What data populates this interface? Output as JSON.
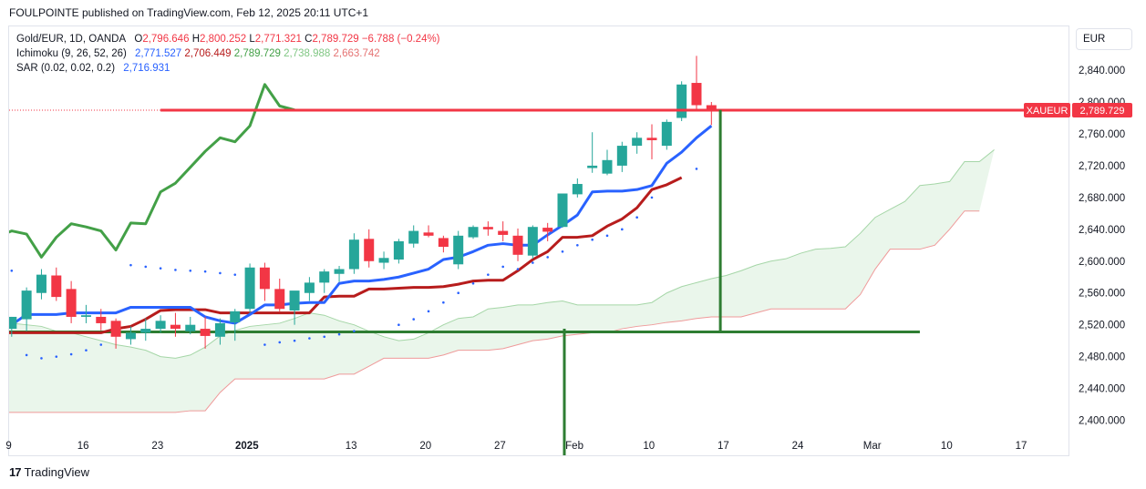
{
  "header": {
    "publisher_line": "FOULPOINTE published on TradingView.com, Feb 12, 2025 20:11 UTC+1"
  },
  "legend": {
    "symbol": "Gold/EUR, 1D, OANDA",
    "ohlc": {
      "o_label": "O",
      "o": "2,796.646",
      "h_label": "H",
      "h": "2,800.252",
      "l_label": "L",
      "l": "2,771.321",
      "c_label": "C",
      "c": "2,789.729",
      "change": "−6.788 (−0.24%)"
    },
    "ichimoku": {
      "label": "Ichimoku (9, 26, 52, 26)",
      "conversion": "2,771.527",
      "base": "2,706.449",
      "lagging": "2,789.729",
      "span_a": "2,738.988",
      "span_b": "2,663.742"
    },
    "sar": {
      "label": "SAR (0.02, 0.02, 0.2)",
      "value": "2,716.931"
    }
  },
  "currency_button": "EUR",
  "price_tag": {
    "symbol": "XAUEUR",
    "price": "2,789.729"
  },
  "footer": {
    "brand": "TradingView"
  },
  "colors": {
    "up": "#26a69a",
    "down": "#f23645",
    "conversion": "#2962ff",
    "base": "#b71c1c",
    "lagging": "#43a047",
    "span_a": "#a5d6a7",
    "span_b": "#ef9a9a",
    "cloud": "#e8f5e9",
    "sar": "#2962ff",
    "drawing": "#2e7d32",
    "price_line": "#f23645"
  },
  "chart_data": {
    "type": "candlestick",
    "title": "Gold/EUR, 1D, OANDA",
    "y_axis": {
      "ticks": [
        2840,
        2800,
        2760,
        2720,
        2680,
        2640,
        2600,
        2560,
        2520,
        2480,
        2440,
        2400
      ],
      "tick_labels": [
        "2,840.000",
        "2,800.000",
        "2,760.000",
        "2,720.000",
        "2,680.000",
        "2,640.000",
        "2,600.000",
        "2,560.000",
        "2,520.000",
        "2,480.000",
        "2,440.000",
        "2,400.000"
      ],
      "ylim": [
        2356,
        2895
      ]
    },
    "x_axis": {
      "ticks": [
        {
          "label": "9",
          "i": -0.2,
          "bold": false
        },
        {
          "label": "16",
          "i": 4.8,
          "bold": false
        },
        {
          "label": "23",
          "i": 9.8,
          "bold": false
        },
        {
          "label": "2025",
          "i": 15.8,
          "bold": true
        },
        {
          "label": "13",
          "i": 22.8,
          "bold": false
        },
        {
          "label": "20",
          "i": 27.8,
          "bold": false
        },
        {
          "label": "27",
          "i": 32.8,
          "bold": false
        },
        {
          "label": "Feb",
          "i": 37.8,
          "bold": false
        },
        {
          "label": "10",
          "i": 42.8,
          "bold": false
        },
        {
          "label": "17",
          "i": 47.8,
          "bold": false
        },
        {
          "label": "24",
          "i": 52.8,
          "bold": false
        },
        {
          "label": "Mar",
          "i": 57.8,
          "bold": false
        },
        {
          "label": "10",
          "i": 62.8,
          "bold": false
        },
        {
          "label": "17",
          "i": 67.8,
          "bold": false
        }
      ]
    },
    "candles": [
      {
        "o": 2515,
        "h": 2530,
        "l": 2505,
        "c": 2530
      },
      {
        "o": 2527,
        "h": 2567,
        "l": 2512,
        "c": 2563
      },
      {
        "o": 2560,
        "h": 2590,
        "l": 2552,
        "c": 2583
      },
      {
        "o": 2582,
        "h": 2592,
        "l": 2550,
        "c": 2555
      },
      {
        "o": 2565,
        "h": 2575,
        "l": 2522,
        "c": 2530
      },
      {
        "o": 2530,
        "h": 2545,
        "l": 2522,
        "c": 2532
      },
      {
        "o": 2530,
        "h": 2540,
        "l": 2513,
        "c": 2522
      },
      {
        "o": 2525,
        "h": 2528,
        "l": 2490,
        "c": 2505
      },
      {
        "o": 2502,
        "h": 2518,
        "l": 2495,
        "c": 2510
      },
      {
        "o": 2510,
        "h": 2528,
        "l": 2500,
        "c": 2515
      },
      {
        "o": 2515,
        "h": 2532,
        "l": 2510,
        "c": 2525
      },
      {
        "o": 2520,
        "h": 2535,
        "l": 2505,
        "c": 2515
      },
      {
        "o": 2512,
        "h": 2530,
        "l": 2508,
        "c": 2520
      },
      {
        "o": 2515,
        "h": 2530,
        "l": 2490,
        "c": 2506
      },
      {
        "o": 2505,
        "h": 2528,
        "l": 2495,
        "c": 2522
      },
      {
        "o": 2523,
        "h": 2540,
        "l": 2500,
        "c": 2537
      },
      {
        "o": 2540,
        "h": 2597,
        "l": 2535,
        "c": 2592
      },
      {
        "o": 2592,
        "h": 2598,
        "l": 2550,
        "c": 2565
      },
      {
        "o": 2565,
        "h": 2578,
        "l": 2537,
        "c": 2540
      },
      {
        "o": 2538,
        "h": 2562,
        "l": 2520,
        "c": 2563
      },
      {
        "o": 2560,
        "h": 2580,
        "l": 2550,
        "c": 2573
      },
      {
        "o": 2573,
        "h": 2590,
        "l": 2560,
        "c": 2587
      },
      {
        "o": 2584,
        "h": 2594,
        "l": 2574,
        "c": 2590
      },
      {
        "o": 2590,
        "h": 2635,
        "l": 2584,
        "c": 2627
      },
      {
        "o": 2628,
        "h": 2640,
        "l": 2592,
        "c": 2600
      },
      {
        "o": 2598,
        "h": 2612,
        "l": 2590,
        "c": 2604
      },
      {
        "o": 2602,
        "h": 2628,
        "l": 2597,
        "c": 2625
      },
      {
        "o": 2622,
        "h": 2645,
        "l": 2617,
        "c": 2638
      },
      {
        "o": 2636,
        "h": 2645,
        "l": 2630,
        "c": 2632
      },
      {
        "o": 2629,
        "h": 2632,
        "l": 2611,
        "c": 2618
      },
      {
        "o": 2596,
        "h": 2638,
        "l": 2590,
        "c": 2632
      },
      {
        "o": 2630,
        "h": 2645,
        "l": 2628,
        "c": 2643
      },
      {
        "o": 2643,
        "h": 2650,
        "l": 2632,
        "c": 2640
      },
      {
        "o": 2638,
        "h": 2650,
        "l": 2625,
        "c": 2633
      },
      {
        "o": 2632,
        "h": 2641,
        "l": 2600,
        "c": 2608
      },
      {
        "o": 2607,
        "h": 2645,
        "l": 2603,
        "c": 2643
      },
      {
        "o": 2642,
        "h": 2648,
        "l": 2625,
        "c": 2637
      },
      {
        "o": 2643,
        "h": 2682,
        "l": 2642,
        "c": 2685
      },
      {
        "o": 2684,
        "h": 2704,
        "l": 2680,
        "c": 2697
      },
      {
        "o": 2717,
        "h": 2762,
        "l": 2711,
        "c": 2720
      },
      {
        "o": 2710,
        "h": 2740,
        "l": 2708,
        "c": 2727
      },
      {
        "o": 2720,
        "h": 2750,
        "l": 2712,
        "c": 2745
      },
      {
        "o": 2745,
        "h": 2762,
        "l": 2735,
        "c": 2755
      },
      {
        "o": 2755,
        "h": 2772,
        "l": 2728,
        "c": 2752
      },
      {
        "o": 2745,
        "h": 2778,
        "l": 2740,
        "c": 2775
      },
      {
        "o": 2780,
        "h": 2826,
        "l": 2776,
        "c": 2822
      },
      {
        "o": 2824,
        "h": 2858,
        "l": 2790,
        "c": 2796
      },
      {
        "o": 2796,
        "h": 2800,
        "l": 2771,
        "c": 2790
      }
    ],
    "series": [
      {
        "name": "Ichimoku conversion",
        "values": [
          2520,
          2533,
          2533,
          2533,
          2535,
          2535,
          2535,
          2535,
          2542,
          2542,
          2542,
          2542,
          2542,
          2530,
          2525,
          2522,
          2533,
          2545,
          2545,
          2547,
          2548,
          2548,
          2572,
          2575,
          2575,
          2577,
          2580,
          2585,
          2590,
          2602,
          2605,
          2612,
          2620,
          2622,
          2620,
          2620,
          2633,
          2645,
          2658,
          2687,
          2688,
          2688,
          2690,
          2695,
          2723,
          2737,
          2755,
          2770
        ]
      },
      {
        "name": "Ichimoku base",
        "values": [
          2510,
          2510,
          2510,
          2510,
          2510,
          2510,
          2510,
          2510,
          2515,
          2518,
          2527,
          2538,
          2539,
          2539,
          2539,
          2535,
          2535,
          2535,
          2535,
          2535,
          2535,
          2535,
          2555,
          2556,
          2556,
          2565,
          2565,
          2566,
          2567,
          2567,
          2568,
          2571,
          2575,
          2576,
          2576,
          2588,
          2602,
          2612,
          2630,
          2630,
          2632,
          2644,
          2653,
          2667,
          2690,
          2696,
          2705
        ]
      },
      {
        "name": "Ichimoku lagging",
        "values": [
          2630,
          2638,
          2634,
          2605,
          2630,
          2647,
          2643,
          2638,
          2614,
          2648,
          2647,
          2687,
          2698,
          2718,
          2738,
          2755,
          2750,
          2770,
          2822,
          2795,
          2790
        ]
      },
      {
        "name": "Ichimoku span A",
        "values": [
          2515,
          2522,
          2520,
          2518,
          2512,
          2510,
          2505,
          2500,
          2495,
          2492,
          2488,
          2480,
          2478,
          2482,
          2492,
          2506,
          2513,
          2518,
          2520,
          2522,
          2528,
          2535,
          2532,
          2525,
          2520,
          2512,
          2505,
          2500,
          2502,
          2510,
          2520,
          2528,
          2530,
          2540,
          2542,
          2545,
          2545,
          2548,
          2550,
          2545,
          2545,
          2545,
          2545,
          2545,
          2548,
          2560,
          2568,
          2573,
          2578,
          2582,
          2588,
          2595,
          2600,
          2603,
          2610,
          2615,
          2616,
          2618,
          2635,
          2655,
          2665,
          2675,
          2695,
          2697,
          2700,
          2725,
          2725,
          2740
        ]
      },
      {
        "name": "Ichimoku span B",
        "values": [
          2410,
          2410,
          2410,
          2410,
          2410,
          2410,
          2410,
          2410,
          2410,
          2410,
          2410,
          2410,
          2410,
          2412,
          2412,
          2435,
          2452,
          2452,
          2452,
          2452,
          2452,
          2452,
          2452,
          2458,
          2458,
          2468,
          2478,
          2478,
          2478,
          2478,
          2482,
          2488,
          2488,
          2488,
          2490,
          2495,
          2500,
          2502,
          2506,
          2508,
          2510,
          2510,
          2515,
          2518,
          2520,
          2523,
          2525,
          2528,
          2530,
          2530,
          2530,
          2535,
          2540,
          2540,
          2540,
          2540,
          2540,
          2540,
          2558,
          2590,
          2615,
          2615,
          2615,
          2620,
          2640,
          2663,
          2663
        ]
      },
      {
        "name": "Parabolic SAR",
        "values": [
          {
            "i": 0,
            "v": 2588
          },
          {
            "i": 1,
            "v": 2482
          },
          {
            "i": 2,
            "v": 2478
          },
          {
            "i": 3,
            "v": 2480
          },
          {
            "i": 4,
            "v": 2483
          },
          {
            "i": 5,
            "v": 2488
          },
          {
            "i": 6,
            "v": 2495
          },
          {
            "i": 8,
            "v": 2595
          },
          {
            "i": 9,
            "v": 2593
          },
          {
            "i": 10,
            "v": 2591
          },
          {
            "i": 11,
            "v": 2589
          },
          {
            "i": 12,
            "v": 2588
          },
          {
            "i": 13,
            "v": 2587
          },
          {
            "i": 14,
            "v": 2585
          },
          {
            "i": 15,
            "v": 2583
          },
          {
            "i": 17,
            "v": 2495
          },
          {
            "i": 18,
            "v": 2498
          },
          {
            "i": 19,
            "v": 2500
          },
          {
            "i": 20,
            "v": 2503
          },
          {
            "i": 21,
            "v": 2505
          },
          {
            "i": 22,
            "v": 2508
          },
          {
            "i": 23,
            "v": 2512
          },
          {
            "i": 26,
            "v": 2520
          },
          {
            "i": 27,
            "v": 2527
          },
          {
            "i": 28,
            "v": 2537
          },
          {
            "i": 29,
            "v": 2548
          },
          {
            "i": 30,
            "v": 2560
          },
          {
            "i": 31,
            "v": 2572
          },
          {
            "i": 32,
            "v": 2583
          },
          {
            "i": 33,
            "v": 2593
          },
          {
            "i": 34,
            "v": 2590
          },
          {
            "i": 35,
            "v": 2598
          },
          {
            "i": 36,
            "v": 2605
          },
          {
            "i": 37,
            "v": 2612
          },
          {
            "i": 38,
            "v": 2620
          },
          {
            "i": 39,
            "v": 2627
          },
          {
            "i": 40,
            "v": 2632
          },
          {
            "i": 41,
            "v": 2640
          },
          {
            "i": 42,
            "v": 2655
          },
          {
            "i": 43,
            "v": 2680
          },
          {
            "i": 46,
            "v": 2716
          }
        ]
      }
    ],
    "levels": {
      "current_price": 2789.729,
      "price_line_start_i": 10,
      "horizontal_support": {
        "value": 2511,
        "from_i": -1,
        "to_i": 61
      },
      "horizontal_resistance": {
        "value": 2790,
        "from_i": 37.8,
        "to_i": 47.5
      },
      "vertical_1": {
        "i": 37,
        "from": 2515,
        "to": 2356
      },
      "vertical_2": {
        "i": 47.6,
        "from": 2790,
        "to": 2511
      }
    },
    "grid": false,
    "legend_position": "top-left"
  }
}
